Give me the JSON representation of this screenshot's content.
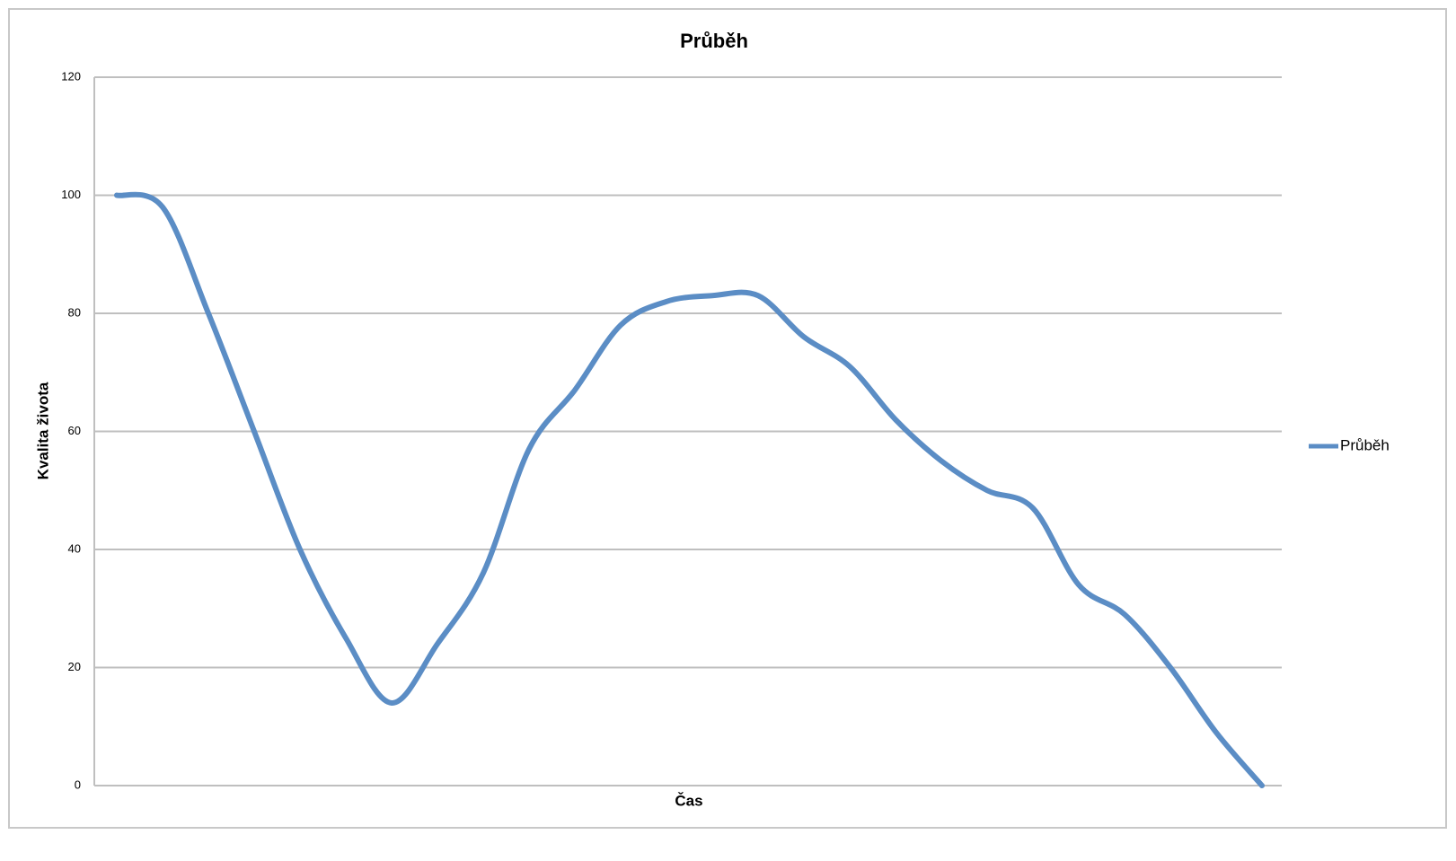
{
  "chart_data": {
    "type": "line",
    "title": "Průběh",
    "x_label": "Čas",
    "y_label": "Kvalita života",
    "categories": [
      null,
      null,
      null,
      null,
      null,
      null,
      null,
      null,
      null,
      null,
      null,
      null,
      null,
      null,
      null,
      null,
      null,
      null,
      null,
      null,
      null,
      null,
      null,
      null,
      null,
      null
    ],
    "series": [
      {
        "name": "Průběh",
        "color": "#5b8dc5",
        "values": [
          100,
          98,
          80,
          60,
          40,
          25,
          14,
          24,
          36,
          57,
          67,
          78,
          82,
          83,
          83,
          76,
          71,
          62,
          55,
          50,
          47,
          34,
          29,
          20,
          9,
          0
        ]
      }
    ],
    "ylim": [
      0,
      120
    ],
    "yticks": [
      0,
      20,
      40,
      60,
      80,
      100,
      120
    ],
    "grid": true,
    "smooth": true,
    "legend": "right"
  }
}
